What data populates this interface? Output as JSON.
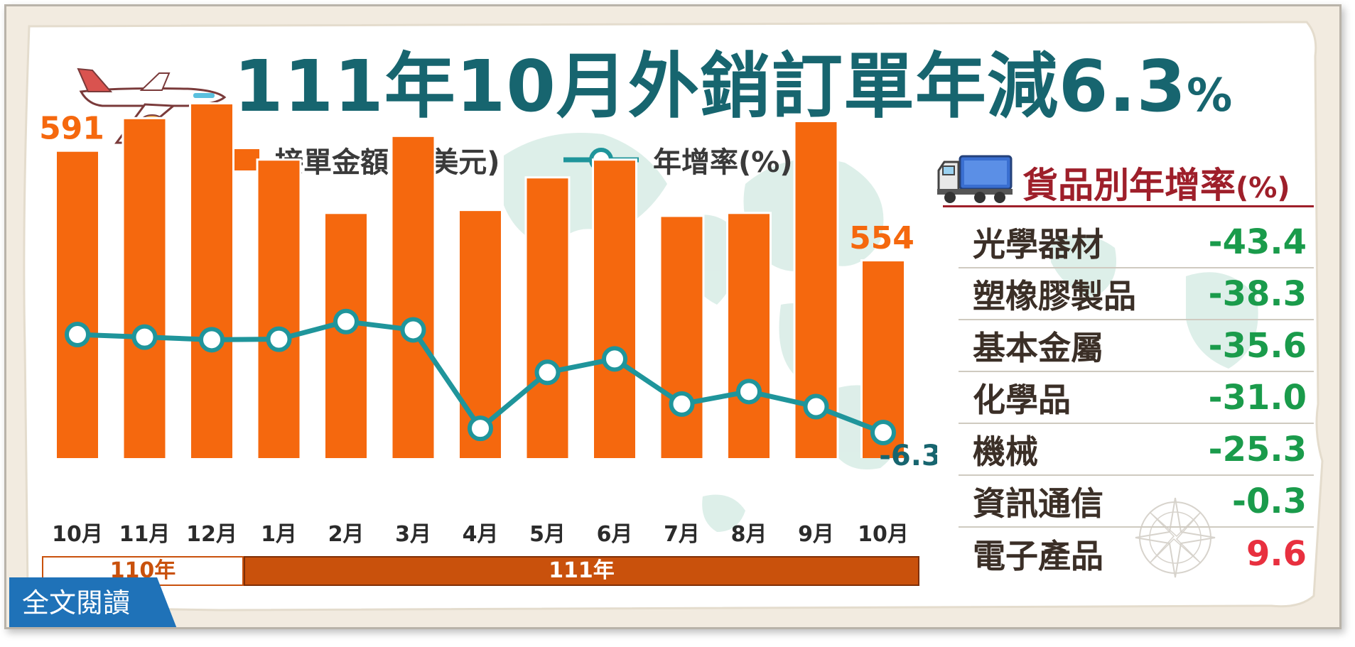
{
  "title": {
    "main": "111年10月外銷訂單年減6.3",
    "percent_sign": "%"
  },
  "legend": {
    "bar_label": "接單金額(億美元)",
    "line_label": "年增率(%)"
  },
  "chart_data": {
    "type": "bar",
    "categories": [
      "10月",
      "11月",
      "12月",
      "1月",
      "2月",
      "3月",
      "4月",
      "5月",
      "6月",
      "7月",
      "8月",
      "9月",
      "10月"
    ],
    "series": [
      {
        "name": "接單金額(億美元)",
        "type": "bar",
        "values": [
          591,
          602,
          607,
          588,
          570,
          596,
          571,
          582,
          588,
          569,
          570,
          601,
          554
        ]
      },
      {
        "name": "年增率(%)",
        "type": "line",
        "values": [
          12.6,
          12.1,
          11.6,
          11.7,
          15.1,
          13.5,
          -5.5,
          5.3,
          7.9,
          -0.8,
          1.6,
          -1.3,
          -6.3
        ]
      }
    ],
    "bar_labels": [
      {
        "index": 0,
        "text": "591"
      },
      {
        "index": 12,
        "text": "554"
      }
    ],
    "line_labels": [
      {
        "index": 12,
        "text": "-6.3"
      }
    ],
    "year_groups": [
      {
        "label": "110年",
        "start_index": 0,
        "end_index": 2
      },
      {
        "label": "111年",
        "start_index": 3,
        "end_index": 12
      }
    ],
    "colors": {
      "bar": "#f5680e",
      "line": "#1f959b",
      "label_bar": "#f5680e",
      "label_line": "#17656f"
    }
  },
  "goods_panel": {
    "title": "貨品別年增率",
    "title_unit": "(%)",
    "icon": "truck-icon",
    "rows": [
      {
        "name": "光學器材",
        "value": "-43.4",
        "color": "#1a9b4b"
      },
      {
        "name": "塑橡膠製品",
        "value": "-38.3",
        "color": "#1a9b4b"
      },
      {
        "name": "基本金屬",
        "value": "-35.6",
        "color": "#1a9b4b"
      },
      {
        "name": "化學品",
        "value": "-31.0",
        "color": "#1a9b4b"
      },
      {
        "name": "機械",
        "value": "-25.3",
        "color": "#1a9b4b"
      },
      {
        "name": "資訊通信",
        "value": "-0.3",
        "color": "#1a9b4b"
      },
      {
        "name": "電子產品",
        "value": "9.6",
        "color": "#e8303f"
      }
    ]
  },
  "footer": {
    "read_more": "全文閱讀"
  }
}
